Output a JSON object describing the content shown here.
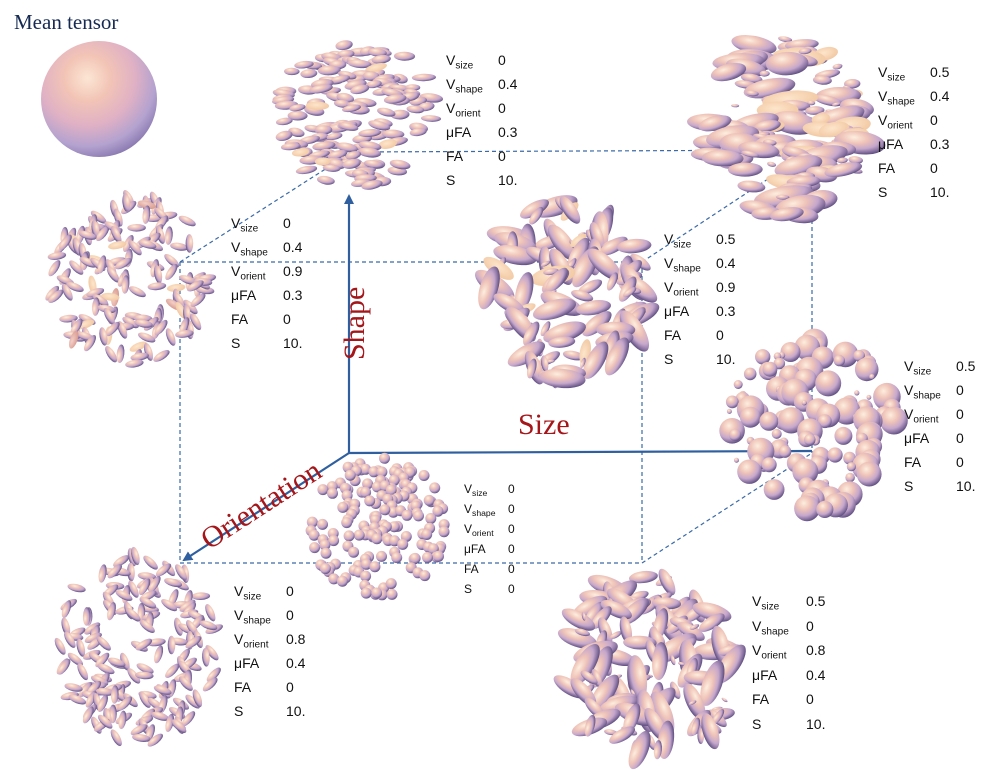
{
  "title": "Mean tensor",
  "axes": {
    "shape": "Shape",
    "size": "Size",
    "orientation": "Orientation"
  },
  "param_names": [
    "size",
    "shape",
    "orient",
    "μFA",
    "FA",
    "S"
  ],
  "panels": [
    {
      "id": "top-left-back",
      "values": [
        "0",
        "0.4",
        "0",
        "0.3",
        "0",
        "10."
      ]
    },
    {
      "id": "top-right-back",
      "values": [
        "0.5",
        "0.4",
        "0",
        "0.3",
        "0",
        "10."
      ]
    },
    {
      "id": "top-left-front",
      "values": [
        "0",
        "0.4",
        "0.9",
        "0.3",
        "0",
        "10."
      ]
    },
    {
      "id": "top-right-front",
      "values": [
        "0.5",
        "0.4",
        "0.9",
        "0.3",
        "0",
        "10."
      ]
    },
    {
      "id": "bottom-right-back",
      "values": [
        "0.5",
        "0",
        "0",
        "0",
        "0",
        "10."
      ]
    },
    {
      "id": "origin",
      "values": [
        "0",
        "0",
        "0",
        "0",
        "0",
        "0"
      ]
    },
    {
      "id": "bottom-left-front",
      "values": [
        "0",
        "0",
        "0.8",
        "0.4",
        "0",
        "10."
      ]
    },
    {
      "id": "bottom-right-front",
      "values": [
        "0.5",
        "0",
        "0.8",
        "0.4",
        "0",
        "10."
      ]
    }
  ],
  "colors": {
    "axis": "#2f5f9f",
    "dashed": "#3a6aa8",
    "label": "#a4161a",
    "title": "#152a52",
    "ellipsoid_light": "#fbe3cf",
    "ellipsoid_mid": "#d9b3c2",
    "ellipsoid_dark": "#5a4a80"
  }
}
